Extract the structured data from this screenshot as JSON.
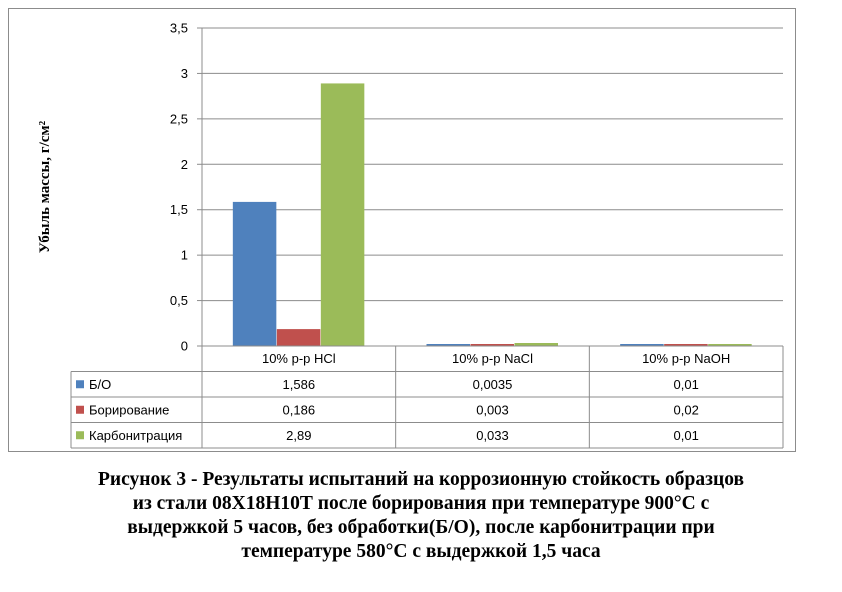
{
  "chart_data": {
    "type": "bar",
    "ylabel": "Убыль массы, г/см²",
    "ylim": [
      0,
      3.5
    ],
    "ytick_step": 0.5,
    "yticks": [
      "0",
      "0,5",
      "1",
      "1,5",
      "2",
      "2,5",
      "3",
      "3,5"
    ],
    "grid": true,
    "legend": "data-table",
    "categories": [
      "10% р-р HCl",
      "10% р-р NaCl",
      "10% р-р NaOH"
    ],
    "series": [
      {
        "name": "Б/О",
        "color": "#4f81bd",
        "values": [
          1.586,
          0.0035,
          0.01
        ],
        "labels": [
          "1,586",
          "0,0035",
          "0,01"
        ]
      },
      {
        "name": "Борирование",
        "color": "#c0504d",
        "values": [
          0.186,
          0.003,
          0.02
        ],
        "labels": [
          "0,186",
          "0,003",
          "0,02"
        ]
      },
      {
        "name": "Карбонитрация",
        "color": "#9bbb59",
        "values": [
          2.89,
          0.033,
          0.01
        ],
        "labels": [
          "2,89",
          "0,033",
          "0,01"
        ]
      }
    ]
  },
  "caption": {
    "line1": "Рисунок 3 - Результаты испытаний на коррозионную стойкость образцов",
    "line2": "из стали 08Х18Н10Т после борирования при температуре 900°С с",
    "line3": "выдержкой 5 часов, без обработки(Б/О), после карбонитрации при",
    "line4": "температуре 580°С с выдержкой 1,5 часа"
  }
}
